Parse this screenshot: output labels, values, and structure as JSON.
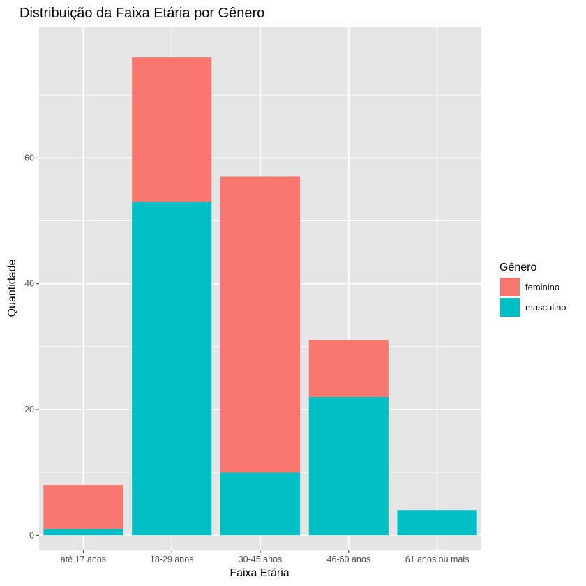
{
  "chart_data": {
    "type": "bar",
    "stacked": true,
    "title": "Distribuição da Faixa Etária por Gênero",
    "xlabel": "Faixa Etária",
    "ylabel": "Quantidade",
    "categories": [
      "até 17 anos",
      "18-29 anos",
      "30-45 anos",
      "46-60 anos",
      "61 anos ou mais"
    ],
    "series": [
      {
        "name": "feminino",
        "color": "#F8766D",
        "values": [
          7,
          23,
          47,
          9,
          0
        ]
      },
      {
        "name": "masculino",
        "color": "#00BFC4",
        "values": [
          1,
          53,
          10,
          22,
          4
        ]
      }
    ],
    "ylim": [
      -2.3,
      80.9
    ],
    "yticks": [
      0,
      20,
      40,
      60
    ],
    "grid": true,
    "legend": {
      "title": "Gênero",
      "position": "right"
    }
  },
  "colors": {
    "panel_background": "#E5E5E5",
    "grid_line": "#FFFFFF"
  }
}
